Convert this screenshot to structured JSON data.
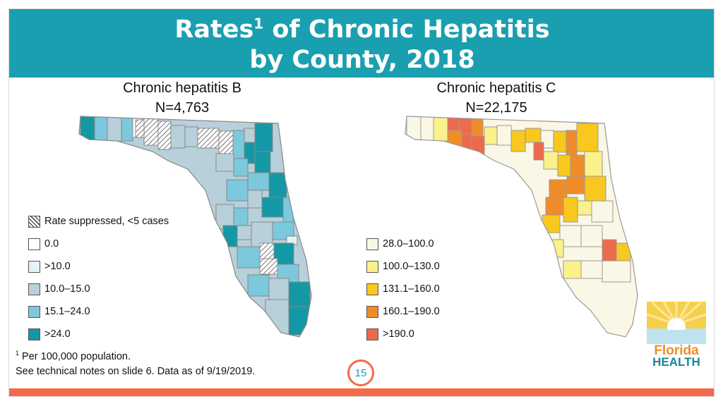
{
  "title": {
    "line1_prefix": "Rates",
    "superscript": "1",
    "line1_suffix": " of Chronic Hepatitis",
    "line2": "by County, 2018"
  },
  "maps": [
    {
      "id": "hep-b",
      "title": "Chronic hepatitis B",
      "subtitle": "N=4,763",
      "legend": [
        {
          "label": "Rate suppressed, <5 cases",
          "pattern": "hatch",
          "color": "#ffffff"
        },
        {
          "label": "0.0",
          "color": "#ffffff"
        },
        {
          "label": ">10.0",
          "color": "#e3f3f7"
        },
        {
          "label": "10.0–15.0",
          "color": "#b8d0da"
        },
        {
          "label": "15.1–24.0",
          "color": "#7cc8dc"
        },
        {
          "label": ">24.0",
          "color": "#1598a5"
        }
      ]
    },
    {
      "id": "hep-c",
      "title": "Chronic hepatitis C",
      "subtitle": "N=22,175",
      "legend": [
        {
          "label": "28.0–100.0",
          "color": "#fbf7e6"
        },
        {
          "label": "100.0–130.0",
          "color": "#fbf18c"
        },
        {
          "label": "131.1–160.0",
          "color": "#f8c81e"
        },
        {
          "label": "160.1–190.0",
          "color": "#f08c28"
        },
        {
          "label": ">190.0",
          "color": "#ee6a4c"
        }
      ]
    }
  ],
  "footnote": {
    "marker": "1",
    "line1": " Per 100,000 population.",
    "line2": "See technical notes on slide 6. Data as of 9/19/2019."
  },
  "page_number": "15",
  "logo": {
    "line1": "Florida",
    "line2": "HEALTH"
  },
  "colors": {
    "header": "#1a9fb0",
    "accent": "#f26a4a",
    "border": "#888888",
    "hatch": "#555555"
  }
}
